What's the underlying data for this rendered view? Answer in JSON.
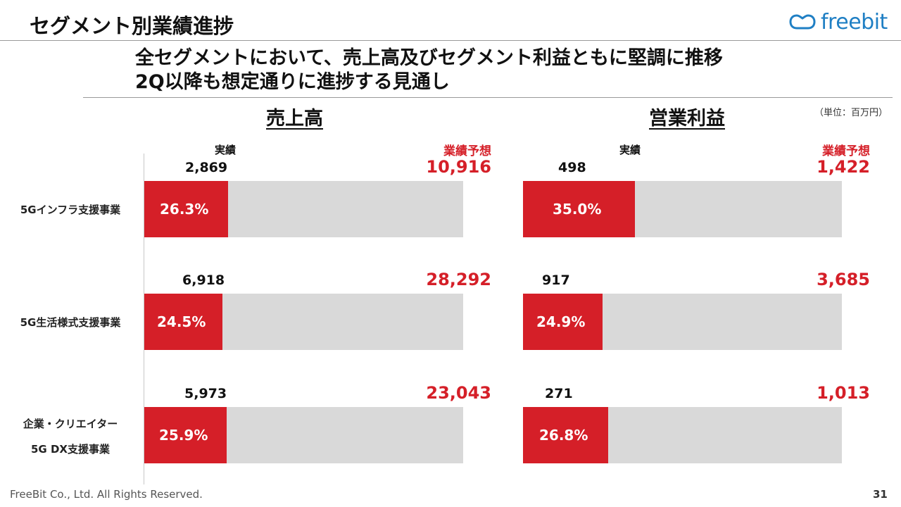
{
  "header": {
    "title": "セグメント別業績進捗",
    "logo_text": "freebit"
  },
  "headline": {
    "line1": "全セグメントにおいて、売上高及びセグメント利益ともに堅調に推移",
    "line2": "2Q以降も想定通りに進捗する見通し"
  },
  "unit_note": "（単位：百万円）",
  "footer": {
    "copyright": "FreeBit Co., Ltd. All Rights Reserved.",
    "page": "31"
  },
  "chart_data": [
    {
      "type": "bar",
      "title": "売上高",
      "column_labels": {
        "actual": "実績",
        "forecast": "業績予想"
      },
      "categories": [
        "5Gインフラ支援事業",
        "5G生活様式支援事業",
        "企業・クリエイター 5G DX支援事業"
      ],
      "category_lines": [
        [
          "5Gインフラ支援事業"
        ],
        [
          "5G生活様式支援事業"
        ],
        [
          "企業・クリエイター",
          "5G DX支援事業"
        ]
      ],
      "actual_labels": [
        "2,869",
        "6,918",
        "5,973"
      ],
      "forecast_labels": [
        "10,916",
        "28,292",
        "23,043"
      ],
      "actual": [
        2869,
        6918,
        5973
      ],
      "forecast": [
        10916,
        28292,
        23043
      ],
      "progress_labels": [
        "26.3%",
        "24.5%",
        "25.9%"
      ],
      "progress": [
        26.3,
        24.5,
        25.9
      ]
    },
    {
      "type": "bar",
      "title": "営業利益",
      "column_labels": {
        "actual": "実績",
        "forecast": "業績予想"
      },
      "categories": [
        "5Gインフラ支援事業",
        "5G生活様式支援事業",
        "企業・クリエイター 5G DX支援事業"
      ],
      "actual_labels": [
        "498",
        "917",
        "271"
      ],
      "forecast_labels": [
        "1,422",
        "3,685",
        "1,013"
      ],
      "actual": [
        498,
        917,
        271
      ],
      "forecast": [
        1422,
        3685,
        1013
      ],
      "progress_labels": [
        "35.0%",
        "24.9%",
        "26.8%"
      ],
      "progress": [
        35.0,
        24.9,
        26.8
      ]
    }
  ],
  "colors": {
    "accent_red": "#d51f28",
    "bar_background": "#d9d9d9",
    "logo_blue": "#1f7fc4"
  }
}
